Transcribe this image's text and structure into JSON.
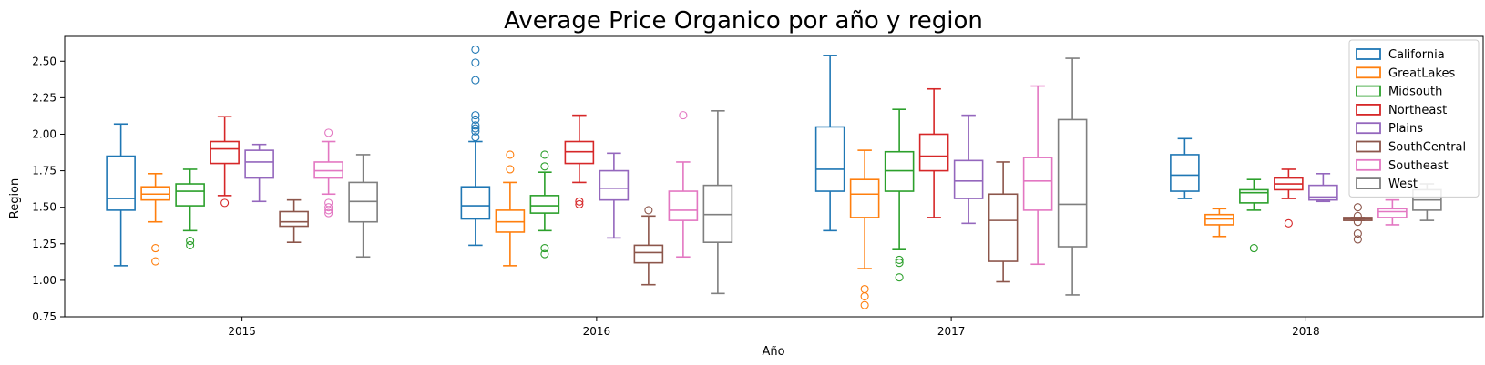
{
  "chart_data": {
    "type": "box",
    "title": "Average Price Organico por año y region",
    "xlabel": "Año",
    "ylabel": "Region",
    "categories": [
      "2015",
      "2016",
      "2017",
      "2018"
    ],
    "ylim": [
      0.75,
      2.67
    ],
    "yticks": [
      "0.75",
      "1.00",
      "1.25",
      "1.50",
      "1.75",
      "2.00",
      "2.25",
      "2.50"
    ],
    "legend_position": "top-right",
    "grid": false,
    "series": [
      {
        "name": "California",
        "color": "#1f77b4",
        "boxes": [
          {
            "whislo": 1.1,
            "q1": 1.48,
            "med": 1.56,
            "q3": 1.85,
            "whishi": 2.07,
            "fliers": []
          },
          {
            "whislo": 1.24,
            "q1": 1.42,
            "med": 1.51,
            "q3": 1.64,
            "whishi": 1.95,
            "fliers": [
              1.98,
              2.02,
              2.04,
              2.06,
              2.1,
              2.13,
              2.37,
              2.49,
              2.58
            ]
          },
          {
            "whislo": 1.34,
            "q1": 1.61,
            "med": 1.76,
            "q3": 2.05,
            "whishi": 2.54,
            "fliers": []
          },
          {
            "whislo": 1.56,
            "q1": 1.61,
            "med": 1.72,
            "q3": 1.86,
            "whishi": 1.97,
            "fliers": []
          }
        ]
      },
      {
        "name": "GreatLakes",
        "color": "#ff7f0e",
        "boxes": [
          {
            "whislo": 1.4,
            "q1": 1.55,
            "med": 1.59,
            "q3": 1.64,
            "whishi": 1.73,
            "fliers": [
              1.13,
              1.22
            ]
          },
          {
            "whislo": 1.1,
            "q1": 1.33,
            "med": 1.4,
            "q3": 1.48,
            "whishi": 1.67,
            "fliers": [
              1.76,
              1.86
            ]
          },
          {
            "whislo": 1.08,
            "q1": 1.43,
            "med": 1.59,
            "q3": 1.69,
            "whishi": 1.89,
            "fliers": [
              0.83,
              0.89,
              0.94
            ]
          },
          {
            "whislo": 1.3,
            "q1": 1.38,
            "med": 1.42,
            "q3": 1.45,
            "whishi": 1.49,
            "fliers": []
          }
        ]
      },
      {
        "name": "Midsouth",
        "color": "#2ca02c",
        "boxes": [
          {
            "whislo": 1.34,
            "q1": 1.51,
            "med": 1.61,
            "q3": 1.66,
            "whishi": 1.76,
            "fliers": [
              1.24,
              1.27
            ]
          },
          {
            "whislo": 1.34,
            "q1": 1.46,
            "med": 1.51,
            "q3": 1.58,
            "whishi": 1.74,
            "fliers": [
              1.18,
              1.22,
              1.78,
              1.86
            ]
          },
          {
            "whislo": 1.21,
            "q1": 1.61,
            "med": 1.75,
            "q3": 1.88,
            "whishi": 2.17,
            "fliers": [
              1.02,
              1.12,
              1.14
            ]
          },
          {
            "whislo": 1.48,
            "q1": 1.53,
            "med": 1.6,
            "q3": 1.62,
            "whishi": 1.69,
            "fliers": [
              1.22
            ]
          }
        ]
      },
      {
        "name": "Northeast",
        "color": "#d62728",
        "boxes": [
          {
            "whislo": 1.58,
            "q1": 1.8,
            "med": 1.9,
            "q3": 1.95,
            "whishi": 2.12,
            "fliers": [
              1.53
            ]
          },
          {
            "whislo": 1.67,
            "q1": 1.8,
            "med": 1.88,
            "q3": 1.95,
            "whishi": 2.13,
            "fliers": [
              1.52,
              1.54
            ]
          },
          {
            "whislo": 1.43,
            "q1": 1.75,
            "med": 1.85,
            "q3": 2.0,
            "whishi": 2.31,
            "fliers": []
          },
          {
            "whislo": 1.56,
            "q1": 1.62,
            "med": 1.66,
            "q3": 1.7,
            "whishi": 1.76,
            "fliers": [
              1.39
            ]
          }
        ]
      },
      {
        "name": "Plains",
        "color": "#9467bd",
        "boxes": [
          {
            "whislo": 1.54,
            "q1": 1.7,
            "med": 1.81,
            "q3": 1.89,
            "whishi": 1.93,
            "fliers": []
          },
          {
            "whislo": 1.29,
            "q1": 1.55,
            "med": 1.63,
            "q3": 1.75,
            "whishi": 1.87,
            "fliers": []
          },
          {
            "whislo": 1.39,
            "q1": 1.56,
            "med": 1.68,
            "q3": 1.82,
            "whishi": 2.13,
            "fliers": []
          },
          {
            "whislo": 1.54,
            "q1": 1.55,
            "med": 1.57,
            "q3": 1.65,
            "whishi": 1.73,
            "fliers": []
          }
        ]
      },
      {
        "name": "SouthCentral",
        "color": "#8c564b",
        "boxes": [
          {
            "whislo": 1.26,
            "q1": 1.37,
            "med": 1.4,
            "q3": 1.47,
            "whishi": 1.55,
            "fliers": []
          },
          {
            "whislo": 0.97,
            "q1": 1.12,
            "med": 1.19,
            "q3": 1.24,
            "whishi": 1.44,
            "fliers": [
              1.48
            ]
          },
          {
            "whislo": 0.99,
            "q1": 1.13,
            "med": 1.41,
            "q3": 1.59,
            "whishi": 1.81,
            "fliers": []
          },
          {
            "whislo": 1.41,
            "q1": 1.41,
            "med": 1.42,
            "q3": 1.43,
            "whishi": 1.43,
            "fliers": [
              1.28,
              1.32,
              1.4,
              1.44,
              1.5
            ]
          }
        ]
      },
      {
        "name": "Southeast",
        "color": "#e377c2",
        "boxes": [
          {
            "whislo": 1.59,
            "q1": 1.7,
            "med": 1.75,
            "q3": 1.81,
            "whishi": 1.95,
            "fliers": [
              1.46,
              1.48,
              1.5,
              1.53,
              2.01
            ]
          },
          {
            "whislo": 1.16,
            "q1": 1.41,
            "med": 1.48,
            "q3": 1.61,
            "whishi": 1.81,
            "fliers": [
              2.13
            ]
          },
          {
            "whislo": 1.11,
            "q1": 1.48,
            "med": 1.68,
            "q3": 1.84,
            "whishi": 2.33,
            "fliers": []
          },
          {
            "whislo": 1.38,
            "q1": 1.43,
            "med": 1.47,
            "q3": 1.49,
            "whishi": 1.55,
            "fliers": []
          }
        ]
      },
      {
        "name": "West",
        "color": "#7f7f7f",
        "boxes": [
          {
            "whislo": 1.16,
            "q1": 1.4,
            "med": 1.54,
            "q3": 1.67,
            "whishi": 1.86,
            "fliers": []
          },
          {
            "whislo": 0.91,
            "q1": 1.26,
            "med": 1.45,
            "q3": 1.65,
            "whishi": 2.16,
            "fliers": []
          },
          {
            "whislo": 0.9,
            "q1": 1.23,
            "med": 1.52,
            "q3": 2.1,
            "whishi": 2.52,
            "fliers": []
          },
          {
            "whislo": 1.41,
            "q1": 1.48,
            "med": 1.55,
            "q3": 1.62,
            "whishi": 1.66,
            "fliers": []
          }
        ]
      }
    ]
  }
}
